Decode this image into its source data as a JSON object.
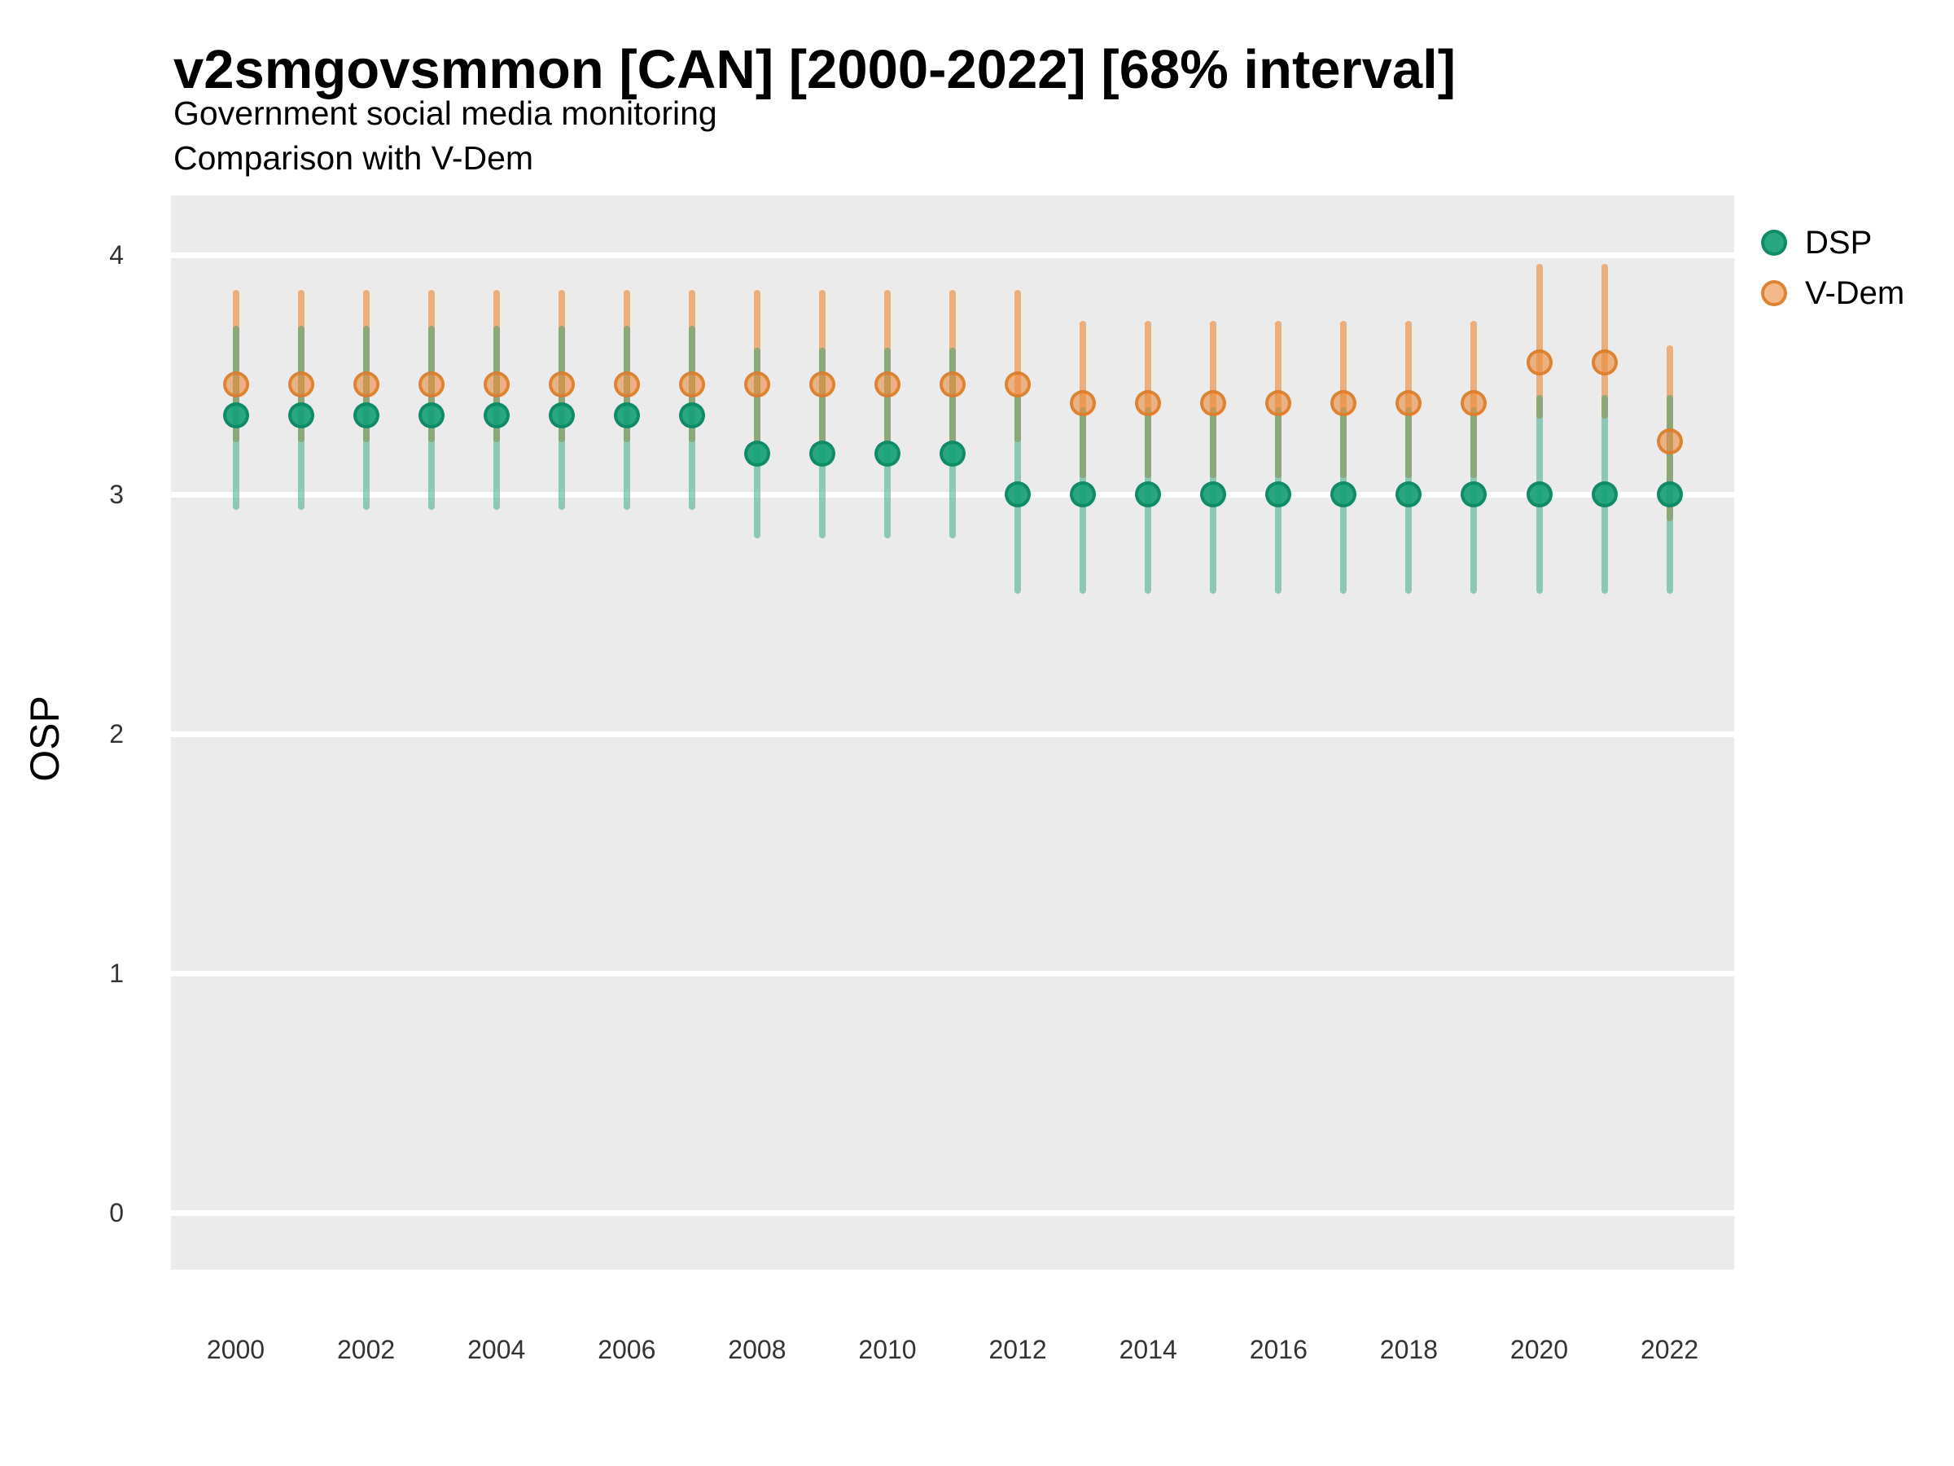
{
  "header": {
    "title": "v2smgovsmmon [CAN] [2000-2022] [68% interval]",
    "subtitle1": "Government social media monitoring",
    "subtitle2": "Comparison with V-Dem"
  },
  "axes": {
    "ylabel": "OSP",
    "y_tick_labels": [
      "0",
      "1",
      "2",
      "3",
      "4"
    ],
    "x_tick_labels": [
      "2000",
      "2002",
      "2004",
      "2006",
      "2008",
      "2010",
      "2012",
      "2014",
      "2016",
      "2018",
      "2020",
      "2022"
    ]
  },
  "legend": [
    {
      "label": "DSP",
      "color": "#1B9E77"
    },
    {
      "label": "V-Dem",
      "color": "#E87D2A"
    }
  ],
  "colors": {
    "dsp_green": "#1B9E77",
    "vdem_orange": "#E87D2A",
    "panel_background": "#EBEBEB",
    "gridline": "#FFFFFF"
  },
  "chart_data": {
    "type": "scatter",
    "subtype": "pointrange-interval-comparison",
    "interval": "68%",
    "title": "v2smgovsmmon [CAN] [2000-2022] [68% interval]",
    "xlabel": "",
    "ylabel": "OSP",
    "x": [
      2000,
      2001,
      2002,
      2003,
      2004,
      2005,
      2006,
      2007,
      2008,
      2009,
      2010,
      2011,
      2012,
      2013,
      2014,
      2015,
      2016,
      2017,
      2018,
      2019,
      2020,
      2021,
      2022
    ],
    "x_ticks": [
      2000,
      2002,
      2004,
      2006,
      2008,
      2010,
      2012,
      2014,
      2016,
      2018,
      2020,
      2022
    ],
    "y_ticks": [
      0,
      1,
      2,
      3,
      4
    ],
    "ylim": [
      -0.25,
      4.25
    ],
    "grid": "horizontal-major-only",
    "legend_position": "right",
    "series": [
      {
        "name": "V-Dem",
        "est": [
          3.46,
          3.46,
          3.46,
          3.46,
          3.46,
          3.46,
          3.46,
          3.46,
          3.46,
          3.46,
          3.46,
          3.46,
          3.46,
          3.38,
          3.38,
          3.38,
          3.38,
          3.38,
          3.38,
          3.38,
          3.55,
          3.55,
          3.22
        ],
        "lo": [
          3.23,
          3.23,
          3.23,
          3.23,
          3.23,
          3.23,
          3.23,
          3.23,
          3.23,
          3.23,
          3.23,
          3.23,
          3.23,
          3.08,
          3.08,
          3.08,
          3.08,
          3.08,
          3.08,
          3.08,
          3.33,
          3.33,
          2.9
        ],
        "hi": [
          3.84,
          3.84,
          3.84,
          3.84,
          3.84,
          3.84,
          3.84,
          3.84,
          3.84,
          3.84,
          3.84,
          3.84,
          3.84,
          3.71,
          3.71,
          3.71,
          3.71,
          3.71,
          3.71,
          3.71,
          3.95,
          3.95,
          3.61
        ]
      },
      {
        "name": "DSP",
        "est": [
          3.33,
          3.33,
          3.33,
          3.33,
          3.33,
          3.33,
          3.33,
          3.33,
          3.17,
          3.17,
          3.17,
          3.17,
          3.0,
          3.0,
          3.0,
          3.0,
          3.0,
          3.0,
          3.0,
          3.0,
          3.0,
          3.0,
          3.0
        ],
        "lo": [
          2.95,
          2.95,
          2.95,
          2.95,
          2.95,
          2.95,
          2.95,
          2.95,
          2.83,
          2.83,
          2.83,
          2.83,
          2.6,
          2.6,
          2.6,
          2.6,
          2.6,
          2.6,
          2.6,
          2.6,
          2.6,
          2.6,
          2.6
        ],
        "hi": [
          3.69,
          3.69,
          3.69,
          3.69,
          3.69,
          3.69,
          3.69,
          3.69,
          3.6,
          3.6,
          3.6,
          3.6,
          3.4,
          3.35,
          3.35,
          3.35,
          3.35,
          3.35,
          3.35,
          3.35,
          3.4,
          3.4,
          3.4
        ]
      }
    ]
  }
}
